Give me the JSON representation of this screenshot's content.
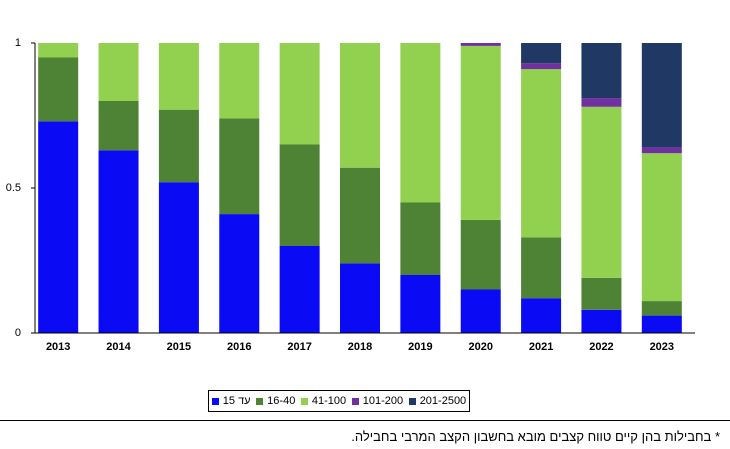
{
  "chart_data": {
    "type": "stacked_bar",
    "categories": [
      "2013",
      "2014",
      "2015",
      "2016",
      "2017",
      "2018",
      "2019",
      "2020",
      "2021",
      "2022",
      "2023"
    ],
    "series": [
      {
        "name": "עד 15",
        "color": "#0a0af5",
        "values": [
          0.73,
          0.63,
          0.52,
          0.41,
          0.3,
          0.24,
          0.2,
          0.15,
          0.12,
          0.08,
          0.06
        ]
      },
      {
        "name": "16-40",
        "color": "#4e8234",
        "values": [
          0.22,
          0.17,
          0.25,
          0.33,
          0.35,
          0.33,
          0.25,
          0.24,
          0.21,
          0.11,
          0.05
        ]
      },
      {
        "name": "41-100",
        "color": "#92d050",
        "values": [
          0.05,
          0.2,
          0.23,
          0.26,
          0.35,
          0.43,
          0.55,
          0.6,
          0.58,
          0.59,
          0.51
        ]
      },
      {
        "name": "101-200",
        "color": "#7030a0",
        "values": [
          0,
          0,
          0,
          0,
          0,
          0,
          0,
          0.01,
          0.02,
          0.03,
          0.02
        ]
      },
      {
        "name": "201-2500",
        "color": "#1f3864",
        "values": [
          0,
          0,
          0,
          0,
          0,
          0,
          0,
          0,
          0.07,
          0.19,
          0.36
        ]
      }
    ],
    "ylim": [
      0,
      1
    ],
    "yticks": [
      0,
      0.5,
      1
    ],
    "footnote": "* בחבילות בהן קיים טווח קצבים מובא בחשבון הקצב המרבי בחבילה."
  }
}
